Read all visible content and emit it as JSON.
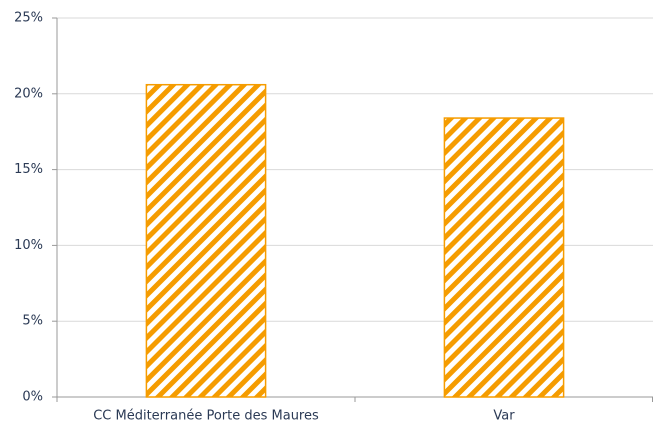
{
  "chart_data": {
    "type": "bar",
    "categories": [
      "CC Méditerranée Porte des Maures",
      "Var"
    ],
    "values": [
      20.6,
      18.4
    ],
    "color": "#f59c00",
    "ylim": [
      0,
      25
    ],
    "yticks": [
      {
        "value": 0,
        "label": "0%"
      },
      {
        "value": 5,
        "label": "5%"
      },
      {
        "value": 10,
        "label": "10%"
      },
      {
        "value": 15,
        "label": "15%"
      },
      {
        "value": 20,
        "label": "20%"
      },
      {
        "value": 25,
        "label": "25%"
      }
    ],
    "grid": true
  }
}
